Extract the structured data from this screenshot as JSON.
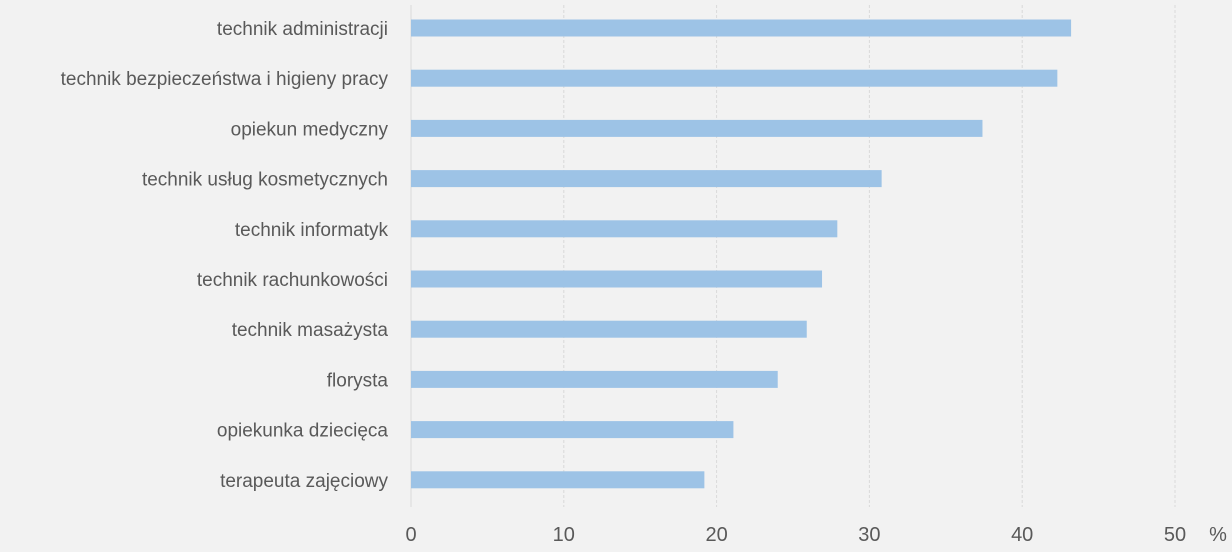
{
  "chart_data": {
    "type": "bar",
    "orientation": "horizontal",
    "categories": [
      "technik administracji",
      "technik bezpieczeństwa i higieny pracy",
      "opiekun medyczny",
      "technik usług kosmetycznych",
      "technik informatyk",
      "technik rachunkowości",
      "technik masażysta",
      "florysta",
      "opiekunka dziecięca",
      "terapeuta zajęciowy"
    ],
    "values": [
      43.2,
      42.3,
      37.4,
      30.8,
      27.9,
      26.9,
      25.9,
      24.0,
      21.1,
      19.2
    ],
    "xlim": [
      0,
      50
    ],
    "x_ticks": [
      0,
      10,
      20,
      30,
      40,
      50
    ],
    "x_ticks_labels": [
      "0",
      "10",
      "20",
      "30",
      "40",
      "50"
    ],
    "x_unit": "%",
    "grid": true,
    "bar_color": "#9dc3e6",
    "grid_color": "#d9d9d9"
  }
}
